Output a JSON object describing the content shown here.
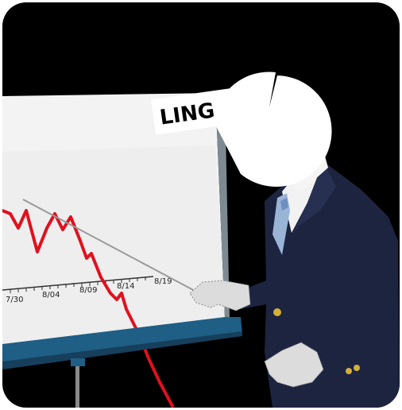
{
  "banner": {
    "text": "LING"
  },
  "chart": {
    "tick_labels": [
      "7/30",
      "8/04",
      "8/09",
      "8/14",
      "8/19"
    ]
  },
  "colors": {
    "background": "#000000",
    "board": "#f2f2f2",
    "line": "#e1101e",
    "suit": "#1c2440",
    "tray": "#1f5e85",
    "hand": "#dcdcdc"
  }
}
